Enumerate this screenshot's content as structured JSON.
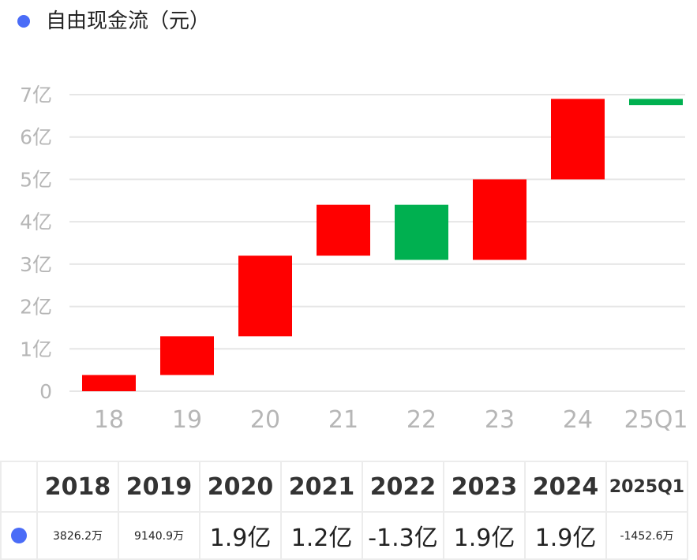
{
  "header": {
    "title": "自由现金流（元）"
  },
  "colors": {
    "accent": "#4a6cf7",
    "up": "#ff0000",
    "down": "#00b050"
  },
  "chart_data": {
    "type": "bar",
    "subtype": "waterfall",
    "title": "自由现金流（元）",
    "categories": [
      "18",
      "19",
      "20",
      "21",
      "22",
      "23",
      "24",
      "25Q1"
    ],
    "series": [
      {
        "name": "自由现金流（元）",
        "start": [
          0,
          0.38262,
          1.29671,
          3.2,
          4.4,
          3.1,
          5.0,
          6.9
        ],
        "end": [
          0.38262,
          1.29671,
          3.2,
          4.4,
          3.1,
          5.0,
          6.9,
          6.7547
        ]
      }
    ],
    "yticks": [
      "0",
      "1亿",
      "2亿",
      "3亿",
      "4亿",
      "5亿",
      "6亿",
      "7亿"
    ],
    "ylim": [
      0,
      7
    ],
    "grid": true
  },
  "table": {
    "years": [
      "2018",
      "2019",
      "2020",
      "2021",
      "2022",
      "2023",
      "2024",
      "2025Q1"
    ],
    "values": [
      "3826.2万",
      "9140.9万",
      "1.9亿",
      "1.2亿",
      "-1.3亿",
      "1.9亿",
      "1.9亿",
      "-1452.6万"
    ]
  }
}
